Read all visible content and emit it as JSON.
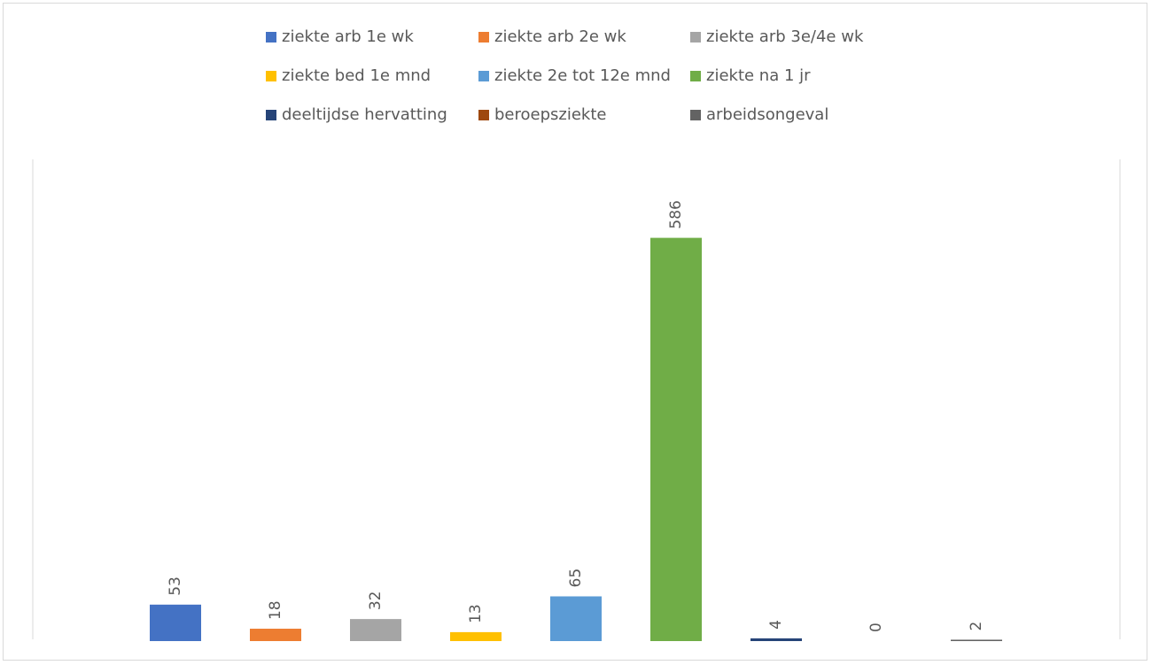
{
  "chart_data": {
    "type": "bar",
    "categories": [
      null
    ],
    "series": [
      {
        "name": "ziekte arb 1e wk",
        "color": "#4472c4",
        "values": [
          53
        ]
      },
      {
        "name": "ziekte arb 2e wk",
        "color": "#ed7d31",
        "values": [
          18
        ]
      },
      {
        "name": "ziekte arb 3e/4e wk",
        "color": "#a5a5a5",
        "values": [
          32
        ]
      },
      {
        "name": "ziekte bed 1e mnd",
        "color": "#ffc000",
        "values": [
          13
        ]
      },
      {
        "name": "ziekte 2e tot 12e mnd",
        "color": "#5b9bd5",
        "values": [
          65
        ]
      },
      {
        "name": "ziekte na 1 jr",
        "color": "#70ad47",
        "values": [
          586
        ]
      },
      {
        "name": "deeltijdse hervatting",
        "color": "#264478",
        "values": [
          4
        ]
      },
      {
        "name": "beroepsziekte",
        "color": "#9e480e",
        "values": [
          0
        ]
      },
      {
        "name": "arbeidsongeval",
        "color": "#636363",
        "values": [
          2
        ]
      }
    ],
    "ylim": [
      0,
      700
    ],
    "legend": "top"
  }
}
